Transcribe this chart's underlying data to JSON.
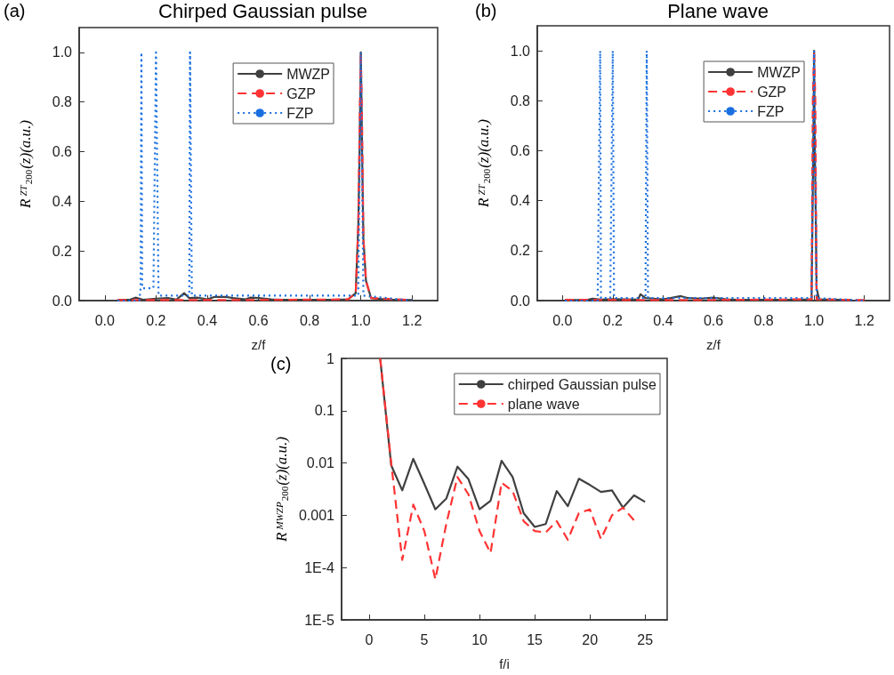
{
  "chart_data": [
    {
      "type": "line",
      "title": "Chirped Gaussian pulse",
      "xlabel": "z/f",
      "ylabel": "R$^{ZT}$$_{200}$(z)(a.u.)",
      "annotations": [
        "(a)"
      ],
      "xlim": [
        -0.1,
        1.3
      ],
      "ylim": [
        0,
        1.1
      ],
      "xticks": [
        {
          "value": 0,
          "label": "0.0"
        },
        {
          "value": 0.2,
          "label": "0.2"
        },
        {
          "value": 0.4,
          "label": "0.4"
        },
        {
          "value": 0.6,
          "label": "0.6"
        },
        {
          "value": 0.8,
          "label": "0.8"
        },
        {
          "value": 1,
          "label": "1.0"
        },
        {
          "value": 1.2,
          "label": "1.2"
        }
      ],
      "yticks": [
        {
          "value": 0,
          "label": "0.0"
        },
        {
          "value": 0.2,
          "label": "0.2"
        },
        {
          "value": 0.4,
          "label": "0.4"
        },
        {
          "value": 0.6,
          "label": "0.6"
        },
        {
          "value": 0.8,
          "label": "0.8"
        },
        {
          "value": 1,
          "label": "1.0"
        }
      ],
      "grid": false,
      "legend": "top right",
      "marker": "none",
      "series": [
        {
          "name": "MWZP",
          "color": "#404040",
          "line_style": "solid",
          "x": [
            0.05,
            0.1,
            0.12,
            0.15,
            0.2,
            0.25,
            0.28,
            0.31,
            0.33,
            0.36,
            0.4,
            0.43,
            0.47,
            0.5,
            0.55,
            0.57,
            0.6,
            0.65,
            0.7,
            0.8,
            0.9,
            0.95,
            0.98,
            0.99,
            0.995,
            1.0,
            1.005,
            1.01,
            1.02,
            1.04,
            1.1,
            1.2
          ],
          "values": [
            0.002,
            0.004,
            0.012,
            0.003,
            0.008,
            0.01,
            0.004,
            0.03,
            0.01,
            0.012,
            0.005,
            0.015,
            0.015,
            0.01,
            0.005,
            0.012,
            0.01,
            0.005,
            0.003,
            0.003,
            0.003,
            0.005,
            0.03,
            0.3,
            0.6,
            1.0,
            0.6,
            0.25,
            0.08,
            0.01,
            0.004,
            0.002
          ]
        },
        {
          "name": "GZP",
          "color": "#ff3333",
          "line_style": "dashed",
          "x": [
            0.05,
            0.5,
            0.95,
            0.98,
            0.99,
            0.995,
            1.0,
            1.005,
            1.01,
            1.02,
            1.04,
            1.2
          ],
          "values": [
            0.002,
            0.002,
            0.005,
            0.03,
            0.3,
            0.7,
            1.0,
            0.7,
            0.25,
            0.08,
            0.01,
            0.002
          ]
        },
        {
          "name": "FZP",
          "color": "#1a6fe0",
          "line_style": "dotted",
          "x": [
            0.05,
            0.135,
            0.14,
            0.143,
            0.146,
            0.19,
            0.2,
            0.21,
            0.33,
            0.333,
            0.34,
            0.99,
            1.0,
            1.01,
            1.2
          ],
          "values": [
            0,
            0,
            0.05,
            1.0,
            0.05,
            0.05,
            1.0,
            0.02,
            0.02,
            1.0,
            0.02,
            0.02,
            1.0,
            0.02,
            0
          ]
        }
      ]
    },
    {
      "type": "line",
      "title": "Plane wave",
      "xlabel": "z/f",
      "ylabel": "R$^{ZT}$$_{200}$(z)(a.u.)",
      "annotations": [
        "(b)"
      ],
      "xlim": [
        -0.1,
        1.3
      ],
      "ylim": [
        0,
        1.1
      ],
      "xticks": [
        {
          "value": 0,
          "label": "0.0"
        },
        {
          "value": 0.2,
          "label": "0.2"
        },
        {
          "value": 0.4,
          "label": "0.4"
        },
        {
          "value": 0.6,
          "label": "0.6"
        },
        {
          "value": 0.8,
          "label": "0.8"
        },
        {
          "value": 1,
          "label": "1.0"
        },
        {
          "value": 1.2,
          "label": "1.2"
        }
      ],
      "yticks": [
        {
          "value": 0,
          "label": "0.0"
        },
        {
          "value": 0.2,
          "label": "0.2"
        },
        {
          "value": 0.4,
          "label": "0.4"
        },
        {
          "value": 0.6,
          "label": "0.6"
        },
        {
          "value": 0.8,
          "label": "0.8"
        },
        {
          "value": 1,
          "label": "1.0"
        }
      ],
      "grid": false,
      "legend": "top right",
      "marker": "none",
      "series": [
        {
          "name": "MWZP",
          "color": "#404040",
          "line_style": "solid",
          "x": [
            0.01,
            0.1,
            0.12,
            0.15,
            0.2,
            0.25,
            0.3,
            0.31,
            0.33,
            0.36,
            0.4,
            0.43,
            0.47,
            0.5,
            0.55,
            0.6,
            0.65,
            0.7,
            0.8,
            0.9,
            0.99,
            0.995,
            0.998,
            1.0,
            1.003,
            1.006,
            1.01,
            1.02,
            1.1,
            1.15
          ],
          "values": [
            0.002,
            0.003,
            0.008,
            0.004,
            0.006,
            0.005,
            0.004,
            0.025,
            0.01,
            0.008,
            0.005,
            0.01,
            0.018,
            0.01,
            0.008,
            0.012,
            0.005,
            0.003,
            0.003,
            0.003,
            0.005,
            0.45,
            0.7,
            1.0,
            0.6,
            0.4,
            0.05,
            0.005,
            0.003,
            0.002
          ]
        },
        {
          "name": "GZP",
          "color": "#ff3333",
          "line_style": "dashed",
          "x": [
            0.01,
            0.5,
            0.99,
            0.995,
            1.0,
            1.005,
            1.01,
            1.2
          ],
          "values": [
            0.003,
            0.002,
            0.005,
            0.8,
            1.0,
            0.8,
            0.005,
            0.002
          ]
        },
        {
          "name": "FZP",
          "color": "#1a6fe0",
          "line_style": "dotted",
          "x": [
            0.01,
            0.14,
            0.15,
            0.153,
            0.19,
            0.2,
            0.205,
            0.33,
            0.335,
            0.34,
            0.99,
            1.0,
            1.01,
            1.2
          ],
          "values": [
            0,
            0,
            1.0,
            0.01,
            0.01,
            1.0,
            0.01,
            0.01,
            1.0,
            0.01,
            0.01,
            1.0,
            0.01,
            0
          ]
        }
      ]
    },
    {
      "type": "line",
      "xlabel": "f/i",
      "ylabel": "R$^{MWZP}$$_{200}$(z)(a.u.)",
      "annotations": [
        "(c)"
      ],
      "xlim": [
        -2.5,
        27
      ],
      "ylim": [
        1e-05,
        1
      ],
      "log": "y",
      "xticks": [
        0,
        5,
        10,
        15,
        20,
        25
      ],
      "yticks": [
        {
          "value": 1e-05,
          "label": "1E-5"
        },
        {
          "value": 0.0001,
          "label": "1E-4"
        },
        0.001,
        0.01,
        0.1,
        1
      ],
      "grid": false,
      "legend": "top right",
      "marker": "none",
      "series": [
        {
          "name": "chirped Gaussian pulse",
          "color": "#404040",
          "line_style": "solid",
          "x": [
            1,
            2,
            3,
            4,
            5,
            6,
            7,
            8,
            9,
            10,
            11,
            12,
            13,
            14,
            15,
            16,
            17,
            18,
            19,
            20,
            21,
            22,
            23,
            24,
            25
          ],
          "values": [
            1,
            0.009,
            0.003,
            0.012,
            0.004,
            0.0013,
            0.0021,
            0.0085,
            0.0049,
            0.0013,
            0.0019,
            0.011,
            0.0054,
            0.0011,
            0.0006,
            0.00068,
            0.0029,
            0.0015,
            0.005,
            0.0038,
            0.0028,
            0.003,
            0.0014,
            0.0024,
            0.0018
          ]
        },
        {
          "name": "plane wave",
          "color": "#ff3333",
          "line_style": "dashed",
          "x": [
            1,
            2,
            3,
            4,
            5,
            6,
            7,
            8,
            9,
            10,
            11,
            12,
            13,
            14,
            15,
            16,
            17,
            18,
            19,
            20,
            21,
            22,
            23,
            24
          ],
          "values": [
            1,
            0.01,
            0.00014,
            0.0016,
            0.0005,
            6e-05,
            0.0007,
            0.0054,
            0.0025,
            0.0005,
            0.00019,
            0.0042,
            0.0029,
            0.00077,
            0.0005,
            0.00047,
            0.00077,
            0.00034,
            0.0011,
            0.0013,
            0.00035,
            0.001,
            0.0014,
            0.0008
          ]
        }
      ]
    }
  ]
}
